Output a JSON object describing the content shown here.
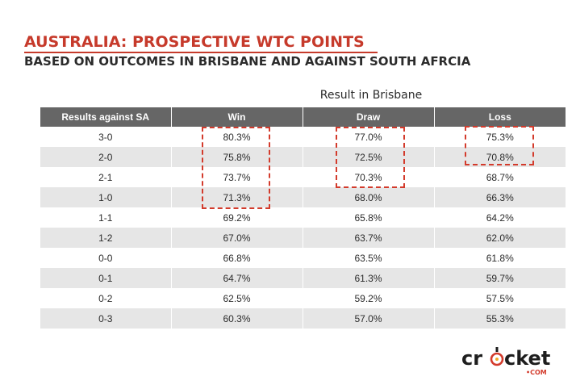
{
  "title": "AUSTRALIA: PROSPECTIVE WTC POINTS",
  "subtitle": "BASED ON OUTCOMES IN BRISBANE AND AGAINST SOUTH AFRCIA",
  "group_header": "Result in Brisbane",
  "columns": [
    "Results against SA",
    "Win",
    "Draw",
    "Loss"
  ],
  "rows": [
    [
      "3-0",
      "80.3%",
      "77.0%",
      "75.3%"
    ],
    [
      "2-0",
      "75.8%",
      "72.5%",
      "70.8%"
    ],
    [
      "2-1",
      "73.7%",
      "70.3%",
      "68.7%"
    ],
    [
      "1-0",
      "71.3%",
      "68.0%",
      "66.3%"
    ],
    [
      "1-1",
      "69.2%",
      "65.8%",
      "64.2%"
    ],
    [
      "1-2",
      "67.0%",
      "63.7%",
      "62.0%"
    ],
    [
      "0-0",
      "66.8%",
      "63.5%",
      "61.8%"
    ],
    [
      "0-1",
      "64.7%",
      "61.3%",
      "59.7%"
    ],
    [
      "0-2",
      "62.5%",
      "59.2%",
      "57.5%"
    ],
    [
      "0-3",
      "60.3%",
      "57.0%",
      "55.3%"
    ]
  ],
  "logo": {
    "word_left": "cr",
    "word_right": "cket",
    "suffix": "•COM"
  },
  "colors": {
    "accent": "#c63a2b",
    "header_bg": "#666666",
    "stripe": "#e6e6e6",
    "highlight": "#d33b2c"
  }
}
